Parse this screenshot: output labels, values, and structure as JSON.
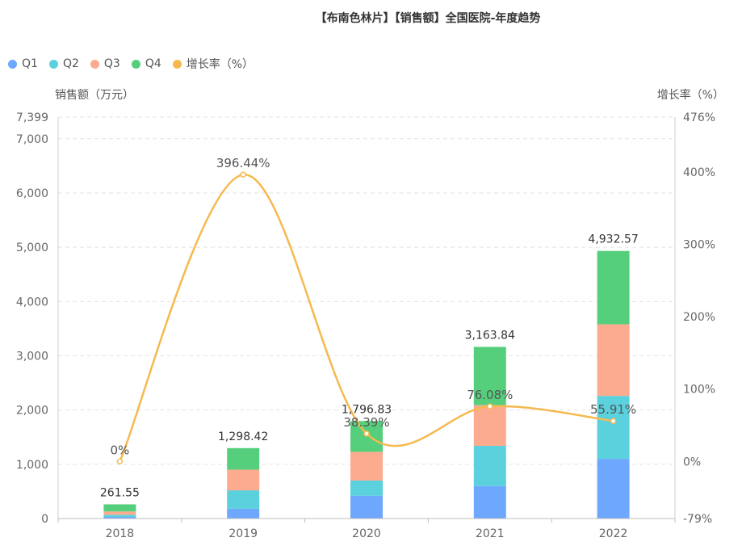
{
  "chart_data": {
    "type": "bar",
    "title": "【布南色林片】【销售额】全国医院-年度趋势",
    "categories": [
      "2018",
      "2019",
      "2020",
      "2021",
      "2022"
    ],
    "ylabel": "销售额（万元）",
    "y2label": "增长率（%）",
    "ylim": [
      0,
      7399
    ],
    "y2lim": [
      -79,
      476
    ],
    "yticks": [
      "0",
      "1,000",
      "2,000",
      "3,000",
      "4,000",
      "5,000",
      "6,000",
      "7,000",
      "7,399"
    ],
    "y2ticks": [
      "-79%",
      "0%",
      "100%",
      "200%",
      "300%",
      "400%",
      "476%"
    ],
    "stacked": true,
    "series": [
      {
        "name": "Q1",
        "color": "#6ea8fe",
        "values": [
          30,
          180,
          420,
          600,
          1100
        ]
      },
      {
        "name": "Q2",
        "color": "#5ad1dc",
        "values": [
          40,
          340,
          280,
          740,
          1160
        ]
      },
      {
        "name": "Q3",
        "color": "#fdab8f",
        "values": [
          60,
          380,
          530,
          750,
          1320
        ]
      },
      {
        "name": "Q4",
        "color": "#56cf7c",
        "values": [
          131.55,
          398.42,
          566.83,
          1073.84,
          1352.57
        ]
      }
    ],
    "totals": [
      "261.55",
      "1,298.42",
      "1,796.83",
      "3,163.84",
      "4,932.57"
    ],
    "growth": {
      "name": "增长率（%）",
      "color": "#f6b94f",
      "values": [
        0,
        396.44,
        38.39,
        76.08,
        55.91
      ],
      "labels": [
        "0%",
        "396.44%",
        "38.39%",
        "76.08%",
        "55.91%"
      ]
    },
    "legend_position": "top-left",
    "grid": true
  }
}
